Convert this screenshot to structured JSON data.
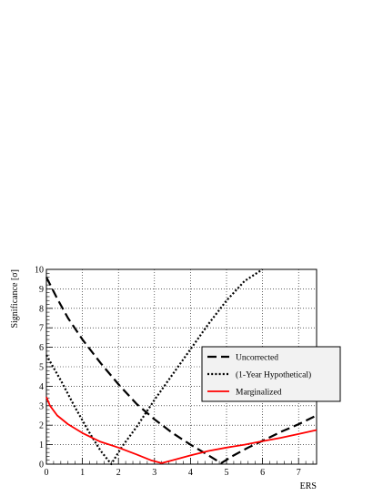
{
  "chart_data": {
    "type": "line",
    "xlabel": "ERS",
    "ylabel": "Significance [σ]",
    "xlim": [
      0,
      7.5
    ],
    "ylim": [
      0,
      10
    ],
    "xticks": [
      0,
      1,
      2,
      3,
      4,
      5,
      6,
      7
    ],
    "yticks": [
      0,
      1,
      2,
      3,
      4,
      5,
      6,
      7,
      8,
      9,
      10
    ],
    "grid": true,
    "legend_position": "right",
    "series": [
      {
        "name": "Uncorrected",
        "style": "dashed",
        "color": "#000000",
        "x": [
          0,
          0.3,
          0.6,
          1.0,
          1.5,
          2.0,
          2.5,
          3.0,
          3.5,
          4.0,
          4.5,
          4.85,
          5.2,
          5.6,
          6.0,
          6.5,
          7.0,
          7.5
        ],
        "y": [
          9.6,
          8.5,
          7.5,
          6.4,
          5.2,
          4.1,
          3.1,
          2.3,
          1.6,
          1.0,
          0.45,
          0.05,
          0.45,
          0.85,
          1.2,
          1.65,
          2.05,
          2.5
        ]
      },
      {
        "name": "(1-Year Hypothetical)",
        "style": "dotted",
        "color": "#000000",
        "x": [
          0,
          0.4,
          0.8,
          1.2,
          1.5,
          1.8,
          2.1,
          2.5,
          3.0,
          3.5,
          4.0,
          4.5,
          5.0,
          5.5,
          6.0
        ],
        "y": [
          5.6,
          4.3,
          2.9,
          1.6,
          0.7,
          0.0,
          0.9,
          1.9,
          3.3,
          4.6,
          5.9,
          7.2,
          8.4,
          9.4,
          10.1
        ]
      },
      {
        "name": "Marginalized",
        "style": "solid",
        "color": "#ff0000",
        "x": [
          0,
          0.1,
          0.3,
          0.6,
          1.0,
          1.5,
          2.0,
          2.5,
          2.9,
          3.2,
          3.5,
          4.0,
          4.5,
          5.0,
          5.5,
          6.0,
          6.5,
          7.0,
          7.5
        ],
        "y": [
          3.45,
          3.0,
          2.5,
          2.05,
          1.6,
          1.15,
          0.85,
          0.5,
          0.2,
          0.05,
          0.2,
          0.45,
          0.68,
          0.85,
          1.0,
          1.18,
          1.35,
          1.55,
          1.75
        ]
      }
    ]
  }
}
